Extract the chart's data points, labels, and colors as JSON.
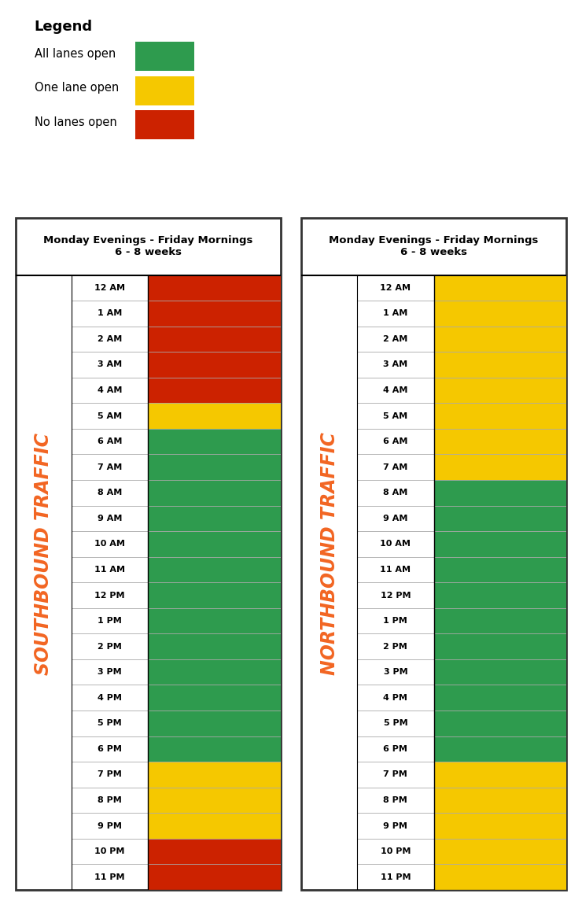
{
  "title": "Monday Evenings - Friday Mornings\n6 - 8 weeks",
  "legend_title": "Legend",
  "legend_items": [
    "All lanes open",
    "One lane open",
    "No lanes open"
  ],
  "colors": {
    "green": "#2E9B4E",
    "yellow": "#F5C800",
    "red": "#CC2200"
  },
  "hours": [
    "12 AM",
    "1 AM",
    "2 AM",
    "3 AM",
    "4 AM",
    "5 AM",
    "6 AM",
    "7 AM",
    "8 AM",
    "9 AM",
    "10 AM",
    "11 AM",
    "12 PM",
    "1 PM",
    "2 PM",
    "3 PM",
    "4 PM",
    "5 PM",
    "6 PM",
    "7 PM",
    "8 PM",
    "9 PM",
    "10 PM",
    "11 PM"
  ],
  "southbound": [
    "red",
    "red",
    "red",
    "red",
    "red",
    "yellow",
    "green",
    "green",
    "green",
    "green",
    "green",
    "green",
    "green",
    "green",
    "green",
    "green",
    "green",
    "green",
    "green",
    "yellow",
    "yellow",
    "yellow",
    "red",
    "red"
  ],
  "northbound": [
    "yellow",
    "yellow",
    "yellow",
    "yellow",
    "yellow",
    "yellow",
    "yellow",
    "yellow",
    "green",
    "green",
    "green",
    "green",
    "green",
    "green",
    "green",
    "green",
    "green",
    "green",
    "green",
    "yellow",
    "yellow",
    "yellow",
    "yellow",
    "yellow"
  ],
  "orange_color": "#F26522",
  "background": "#ffffff"
}
